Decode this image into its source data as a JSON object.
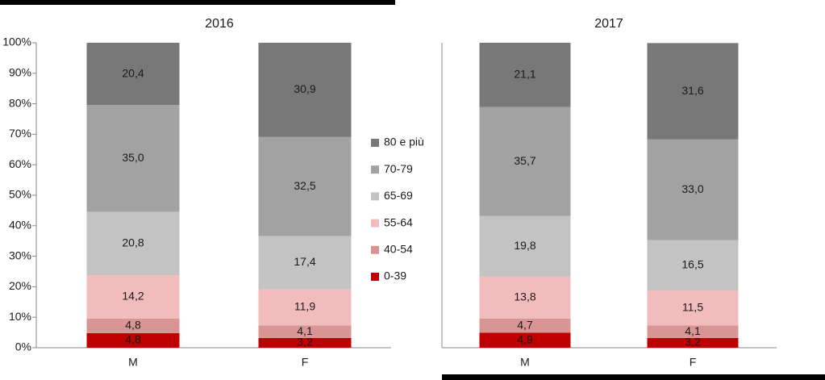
{
  "chart_data": [
    {
      "type": "stacked-bar",
      "title": "2016",
      "categories": [
        "M",
        "F"
      ],
      "ylim": [
        0,
        100
      ],
      "yticks": [
        {
          "value": 0,
          "label": "0%"
        },
        {
          "value": 10,
          "label": "10%"
        },
        {
          "value": 20,
          "label": "20%"
        },
        {
          "value": 30,
          "label": "30%"
        },
        {
          "value": 40,
          "label": "40%"
        },
        {
          "value": 50,
          "label": "50%"
        },
        {
          "value": 60,
          "label": "60%"
        },
        {
          "value": 70,
          "label": "70%"
        },
        {
          "value": 80,
          "label": "80%"
        },
        {
          "value": 90,
          "label": "90%"
        },
        {
          "value": 100,
          "label": "100%"
        }
      ],
      "series": [
        {
          "name": "0-39",
          "color": "#c00000",
          "values": [
            4.8,
            3.2
          ],
          "value_labels": [
            "4,8",
            "3,2"
          ]
        },
        {
          "name": "40-54",
          "color": "#d99594",
          "values": [
            4.8,
            4.1
          ],
          "value_labels": [
            "4,8",
            "4,1"
          ]
        },
        {
          "name": "55-64",
          "color": "#f2bcbc",
          "values": [
            14.2,
            11.9
          ],
          "value_labels": [
            "14,2",
            "11,9"
          ]
        },
        {
          "name": "65-69",
          "color": "#c3c3c3",
          "values": [
            20.8,
            17.4
          ],
          "value_labels": [
            "20,8",
            "17,4"
          ]
        },
        {
          "name": "70-79",
          "color": "#a2a2a2",
          "values": [
            35.0,
            32.5
          ],
          "value_labels": [
            "35,0",
            "32,5"
          ]
        },
        {
          "name": "80 e più",
          "color": "#787878",
          "values": [
            20.4,
            30.9
          ],
          "value_labels": [
            "20,4",
            "30,9"
          ]
        }
      ]
    },
    {
      "type": "stacked-bar",
      "title": "2017",
      "categories": [
        "M",
        "F"
      ],
      "ylim": [
        0,
        100
      ],
      "series": [
        {
          "color": "#c00000",
          "values": [
            4.9,
            3.2
          ],
          "value_labels": [
            "4,9",
            "3,2"
          ]
        },
        {
          "color": "#d99594",
          "values": [
            4.7,
            4.1
          ],
          "value_labels": [
            "4,7",
            "4,1"
          ]
        },
        {
          "color": "#f2bcbc",
          "values": [
            13.8,
            11.5
          ],
          "value_labels": [
            "13,8",
            "11,5"
          ]
        },
        {
          "color": "#c3c3c3",
          "values": [
            19.8,
            16.5
          ],
          "value_labels": [
            "19,8",
            "16,5"
          ]
        },
        {
          "color": "#a2a2a2",
          "values": [
            35.7,
            33.0
          ],
          "value_labels": [
            "35,7",
            "33,0"
          ]
        },
        {
          "color": "#787878",
          "values": [
            21.1,
            31.6
          ],
          "value_labels": [
            "21,1",
            "31,6"
          ]
        }
      ]
    }
  ]
}
